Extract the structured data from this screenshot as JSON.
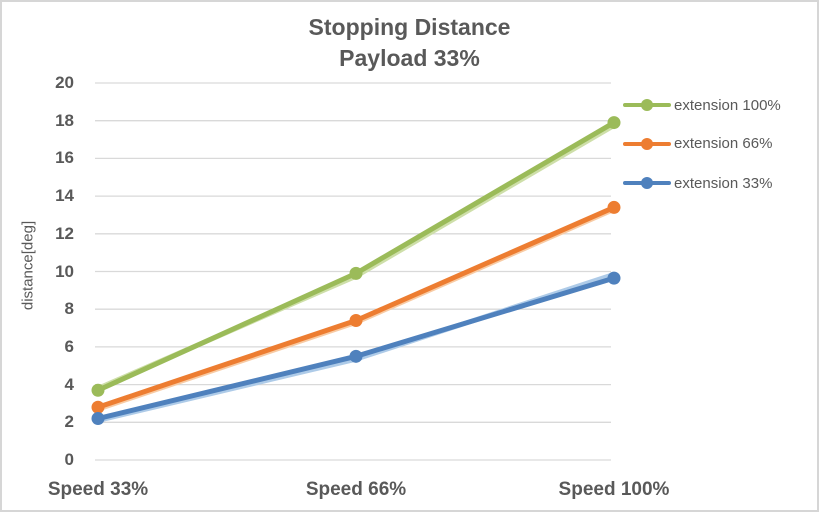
{
  "window": {
    "background": "#ffffff",
    "border_color": "#d6d6d6"
  },
  "title": {
    "line1": "Stopping Distance",
    "line2": "Payload 33%",
    "color": "#595959"
  },
  "chart_data": {
    "type": "line",
    "title": "Stopping Distance Payload 33%",
    "categories": [
      "Speed 33%",
      "Speed 66%",
      "Speed 100%"
    ],
    "series": [
      {
        "name": "extension 100%",
        "color": "#9bbb59",
        "shadow_color": "#cedfa9",
        "values": [
          3.7,
          9.9,
          17.9
        ],
        "shadow_values": [
          3.8,
          9.75,
          17.75
        ]
      },
      {
        "name": "extension 66%",
        "color": "#ed7d31",
        "shadow_color": "#f8cba4",
        "values": [
          2.8,
          7.4,
          13.4
        ],
        "shadow_values": [
          2.7,
          7.3,
          13.3
        ]
      },
      {
        "name": "extension 33%",
        "color": "#4f81bd",
        "shadow_color": "#aecbe8",
        "values": [
          2.2,
          5.5,
          9.65
        ],
        "shadow_values": [
          2.1,
          5.35,
          9.85
        ]
      }
    ],
    "xlabel": "",
    "ylabel": "distance[deg]",
    "ylim": [
      0,
      20
    ],
    "ytick_step": 2,
    "grid": true,
    "grid_color": "#d9d9d9",
    "tick_label_color": "#595959",
    "legend_position": "right",
    "legend_labels": [
      "extension 100%",
      "extension 66%",
      "extension 33%"
    ]
  }
}
